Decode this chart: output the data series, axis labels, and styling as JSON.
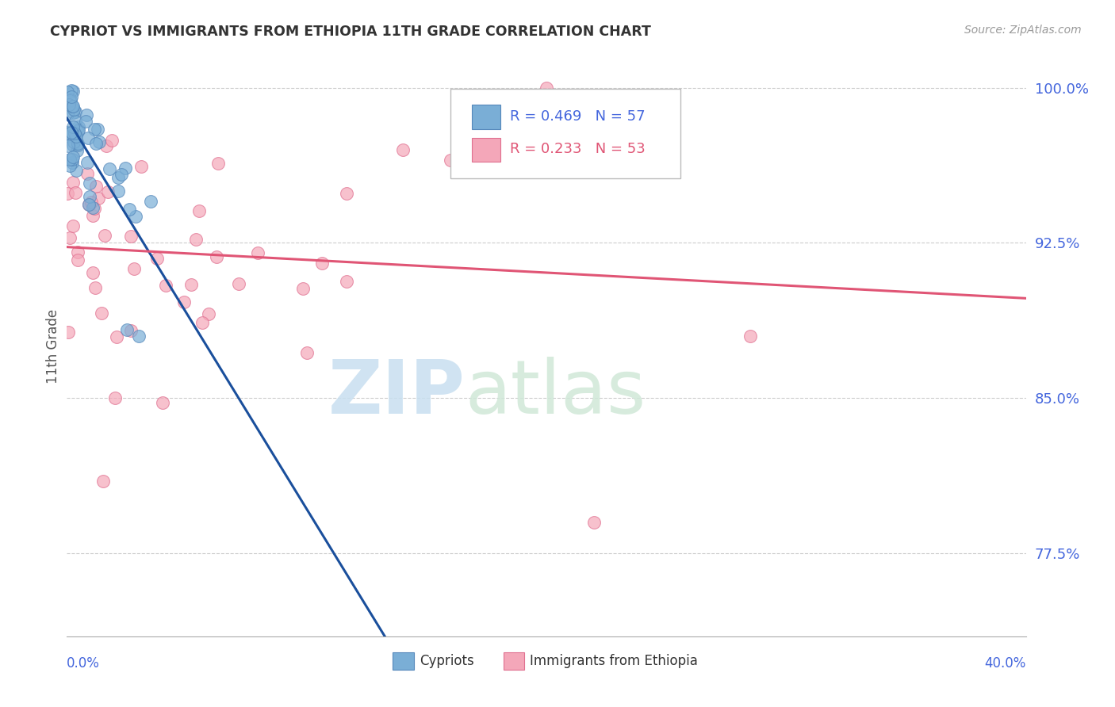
{
  "title": "CYPRIOT VS IMMIGRANTS FROM ETHIOPIA 11TH GRADE CORRELATION CHART",
  "source": "Source: ZipAtlas.com",
  "ylabel": "11th Grade",
  "y_ticks": [
    0.775,
    0.85,
    0.925,
    1.0
  ],
  "y_tick_labels": [
    "77.5%",
    "85.0%",
    "92.5%",
    "100.0%"
  ],
  "xlim": [
    0.0,
    0.4
  ],
  "ylim": [
    0.735,
    1.015
  ],
  "blue_R": 0.469,
  "blue_N": 57,
  "pink_R": 0.233,
  "pink_N": 53,
  "blue_color": "#7aaed6",
  "pink_color": "#f4a7b9",
  "blue_edge_color": "#5588bb",
  "pink_edge_color": "#e07090",
  "blue_line_color": "#1a4f9c",
  "pink_line_color": "#e05575",
  "legend_label_blue": "Cypriots",
  "legend_label_pink": "Immigrants from Ethiopia",
  "background_color": "#FFFFFF",
  "watermark_zip": "ZIP",
  "watermark_atlas": "atlas",
  "grid_color": "#cccccc",
  "title_color": "#333333",
  "tick_color": "#4466dd",
  "source_color": "#999999"
}
